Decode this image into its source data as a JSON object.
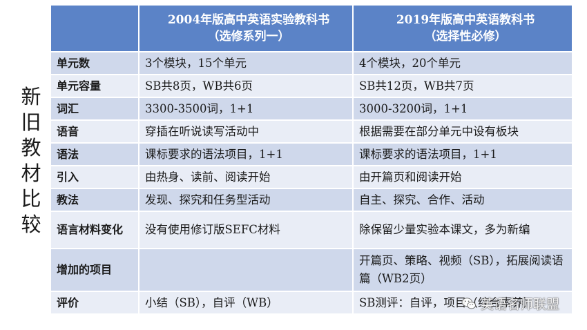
{
  "side_title": [
    "新",
    "旧",
    "教",
    "材",
    "比",
    "较"
  ],
  "header": {
    "col2_line1": "2004年版高中英语实验教科书",
    "col2_line2": "（选修系列一）",
    "col3_line1": "2019年版高中英语教科书",
    "col3_line2": "（选择性必修）"
  },
  "rows": [
    {
      "label": "单元数",
      "old": "3个模块，15个单元",
      "new": "4个模块，20个单元"
    },
    {
      "label": "单元容量",
      "old": "SB共8页，WB共6页",
      "new": "SB共12页，WB共7页"
    },
    {
      "label": "词汇",
      "old": "3300-3500词，1+1",
      "new": "3000-3200词，1+1"
    },
    {
      "label": "语音",
      "old": "穿插在听说读写活动中",
      "new": "根据需要在部分单元中设有板块"
    },
    {
      "label": "语法",
      "old": "课标要求的语法项目，1+1",
      "new": "课标要求的语法项目，1+1"
    },
    {
      "label": "引入",
      "old": "由热身、读前、阅读开始",
      "new": "由开篇页和阅读开始"
    },
    {
      "label": "教法",
      "old": "发现、探究和任务型活动",
      "new": "自主、探究、合作、活动"
    },
    {
      "label": "语言材料变化",
      "old": "没有使用修订版SEFC材料",
      "new": "除保留少量实验本课文，多为新编"
    },
    {
      "label": "增加的项目",
      "old": "",
      "new": "开篇页、策略、视频（SB），拓展阅读语篇（WB2页）"
    },
    {
      "label": "评价",
      "old": "小结（SB），自评（WB）",
      "new": "SB测评：自评，项目（综合素养）"
    }
  ],
  "watermark": "英语名师联盟",
  "colors": {
    "header": "#5b83c7",
    "row_dark": "#cfd8eb",
    "row_light": "#e9edf6"
  }
}
